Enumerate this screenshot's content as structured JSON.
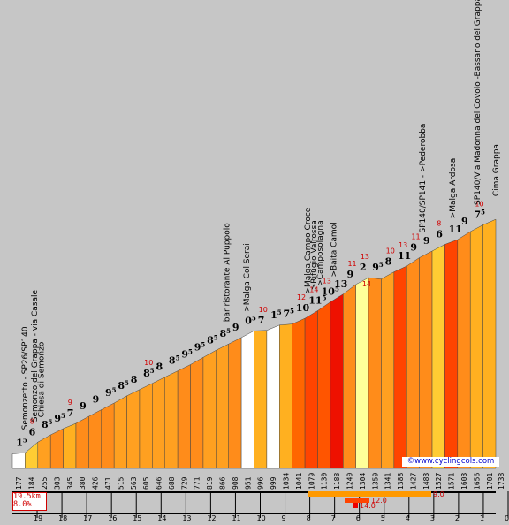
{
  "chart_data": {
    "type": "area",
    "x_ticks": [
      "19",
      "18",
      "17",
      "16",
      "15",
      "14",
      "13",
      "12",
      "11",
      "10",
      "9",
      "8",
      "7",
      "6",
      "5",
      "4",
      "3",
      "2",
      "1",
      "0"
    ],
    "segments": [
      {
        "alt": 177,
        "grade": "1",
        "grade_dec": "5",
        "max": "",
        "color": "#ffffff"
      },
      {
        "alt": 184,
        "grade": "6",
        "grade_dec": "",
        "max": "8",
        "color": "#ffcc33"
      },
      {
        "alt": 255,
        "grade": "8",
        "grade_dec": "5",
        "max": "",
        "color": "#ffa020"
      },
      {
        "alt": 303,
        "grade": "9",
        "grade_dec": "5",
        "max": "",
        "color": "#ff8c1a"
      },
      {
        "alt": 345,
        "grade": "7",
        "grade_dec": "",
        "max": "9",
        "color": "#ffb020"
      },
      {
        "alt": 380,
        "grade": "9",
        "grade_dec": "",
        "max": "",
        "color": "#ff8c1a"
      },
      {
        "alt": 426,
        "grade": "9",
        "grade_dec": "",
        "max": "",
        "color": "#ff8c1a"
      },
      {
        "alt": 471,
        "grade": "9",
        "grade_dec": "5",
        "max": "",
        "color": "#ff8c1a"
      },
      {
        "alt": 515,
        "grade": "8",
        "grade_dec": "5",
        "max": "",
        "color": "#ffa020"
      },
      {
        "alt": 563,
        "grade": "8",
        "grade_dec": "",
        "max": "",
        "color": "#ffa020"
      },
      {
        "alt": 605,
        "grade": "8",
        "grade_dec": "5",
        "max": "10",
        "color": "#ffa020"
      },
      {
        "alt": 646,
        "grade": "8",
        "grade_dec": "",
        "max": "",
        "color": "#ffa020"
      },
      {
        "alt": 688,
        "grade": "8",
        "grade_dec": "5",
        "max": "",
        "color": "#ffa020"
      },
      {
        "alt": 729,
        "grade": "9",
        "grade_dec": "5",
        "max": "",
        "color": "#ff8c1a"
      },
      {
        "alt": 771,
        "grade": "9",
        "grade_dec": "5",
        "max": "",
        "color": "#ff8c1a"
      },
      {
        "alt": 819,
        "grade": "8",
        "grade_dec": "5",
        "max": "",
        "color": "#ffa020"
      },
      {
        "alt": 866,
        "grade": "8",
        "grade_dec": "5",
        "max": "",
        "color": "#ffa020"
      },
      {
        "alt": 908,
        "grade": "9",
        "grade_dec": "",
        "max": "",
        "color": "#ff8c1a"
      },
      {
        "alt": 951,
        "grade": "0",
        "grade_dec": "5",
        "max": "",
        "color": "#ffffff"
      },
      {
        "alt": 996,
        "grade": "7",
        "grade_dec": "",
        "max": "10",
        "color": "#ffb020"
      },
      {
        "alt": 999,
        "grade": "1",
        "grade_dec": "5",
        "max": "",
        "color": "#ffffff"
      },
      {
        "alt": 1034,
        "grade": "7",
        "grade_dec": "5",
        "max": "",
        "color": "#ffb020"
      },
      {
        "alt": 1041,
        "grade": "10",
        "grade_dec": "",
        "max": "12",
        "color": "#ff6600"
      },
      {
        "alt": 1079,
        "grade": "11",
        "grade_dec": "5",
        "max": "14",
        "color": "#ff4400"
      },
      {
        "alt": 1130,
        "grade": "10",
        "grade_dec": "5",
        "max": "13",
        "color": "#ff5500"
      },
      {
        "alt": 1188,
        "grade": "13",
        "grade_dec": "",
        "max": "",
        "color": "#ee1100"
      },
      {
        "alt": 1240,
        "grade": "9",
        "grade_dec": "",
        "max": "11",
        "color": "#ff8c1a"
      },
      {
        "alt": 1304,
        "grade": "2",
        "grade_dec": "",
        "max": "13",
        "color": "#ffff99"
      },
      {
        "alt": 1350,
        "grade": "9",
        "grade_dec": "5",
        "max": "",
        "color": "#ff8c1a"
      },
      {
        "alt": 1341,
        "grade": "8",
        "grade_dec": "",
        "max": "10",
        "color": "#ffa020"
      },
      {
        "alt": 1388,
        "grade": "11",
        "grade_dec": "",
        "max": "13",
        "color": "#ff4400"
      },
      {
        "alt": 1427,
        "grade": "9",
        "grade_dec": "",
        "max": "11",
        "color": "#ff8c1a"
      },
      {
        "alt": 1483,
        "grade": "9",
        "grade_dec": "",
        "max": "",
        "color": "#ff8c1a"
      },
      {
        "alt": 1527,
        "grade": "6",
        "grade_dec": "",
        "max": "8",
        "color": "#ffcc33"
      },
      {
        "alt": 1571,
        "grade": "11",
        "grade_dec": "",
        "max": "",
        "color": "#ff4400"
      },
      {
        "alt": 1603,
        "grade": "9",
        "grade_dec": "",
        "max": "",
        "color": "#ff8c1a"
      },
      {
        "alt": 1656,
        "grade": "7",
        "grade_dec": "5",
        "max": "10",
        "color": "#ffb020"
      },
      {
        "alt": 1701,
        "grade": "",
        "grade_dec": "",
        "max": "",
        "color": "#ffb020"
      }
    ],
    "end_alt": 1738,
    "extra_max": [
      "14"
    ],
    "waypoints": [
      {
        "km": 19.0,
        "label": "Semonzetto - SP26/SP140"
      },
      {
        "km": 18.6,
        "label": "Semonzo del Grappa - via Casale"
      },
      {
        "km": 18.35,
        "label": "Chiesa di Semonzo"
      },
      {
        "km": 10.85,
        "label": "bar ristorante Al Puppolo"
      },
      {
        "km": 10.05,
        "label": ">Malga Col Serai"
      },
      {
        "km": 7.6,
        "label": ">Malga Campo Croce"
      },
      {
        "km": 7.35,
        "label": ">Rifugio Valrossa"
      },
      {
        "km": 7.1,
        "label": ">Camposolagna"
      },
      {
        "km": 6.55,
        "label": ">Baita Camol"
      },
      {
        "km": 2.95,
        "label": "SP140/SP141 - >Pederobba"
      },
      {
        "km": 1.75,
        "label": ">Malga Ardosa"
      },
      {
        "km": 0.75,
        "label": "SP140/Via Madonna del Covolo -Bassano del Grappa"
      },
      {
        "km": 0.0,
        "label": "Cima Grappa"
      }
    ],
    "summary": {
      "distance": "19.5km",
      "avg_grade": "8.0%"
    },
    "legend_bars": [
      {
        "value": "9.0",
        "color": "#ff9900"
      },
      {
        "value": "12.0",
        "color": "#ff4400"
      },
      {
        "value": "14.0",
        "color": "#ee0000"
      }
    ],
    "watermark": "©www.cyclingcols.com"
  }
}
